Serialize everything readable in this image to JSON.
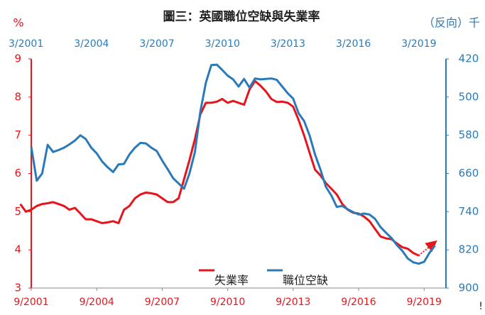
{
  "chart_data": {
    "type": "line",
    "title": "圖三：英國職位空缺與失業率",
    "y_label": "%",
    "y2_label": "（反向）千",
    "annotation": "!",
    "x": [
      "2001-03",
      "2001-06",
      "2001-09",
      "2001-12",
      "2002-03",
      "2002-06",
      "2002-09",
      "2002-12",
      "2003-03",
      "2003-06",
      "2003-09",
      "2003-12",
      "2004-03",
      "2004-06",
      "2004-09",
      "2004-12",
      "2005-03",
      "2005-06",
      "2005-09",
      "2005-12",
      "2006-03",
      "2006-06",
      "2006-09",
      "2006-12",
      "2007-03",
      "2007-06",
      "2007-09",
      "2007-12",
      "2008-03",
      "2008-06",
      "2008-09",
      "2008-12",
      "2009-03",
      "2009-06",
      "2009-09",
      "2009-12",
      "2010-03",
      "2010-06",
      "2010-09",
      "2010-12",
      "2011-03",
      "2011-06",
      "2011-09",
      "2011-12",
      "2012-03",
      "2012-06",
      "2012-09",
      "2012-12",
      "2013-03",
      "2013-06",
      "2013-09",
      "2013-12",
      "2014-03",
      "2014-06",
      "2014-09",
      "2014-12",
      "2015-03",
      "2015-06",
      "2015-09",
      "2015-12",
      "2016-03",
      "2016-06",
      "2016-09",
      "2016-12",
      "2017-03",
      "2017-06",
      "2017-09",
      "2017-12",
      "2018-03",
      "2018-06",
      "2018-09",
      "2018-12",
      "2019-03",
      "2019-06",
      "2019-09",
      "2019-12",
      "2020-03"
    ],
    "series": [
      {
        "name": "失業率",
        "color": "#e8141b",
        "values": [
          5.2,
          5.0,
          5.05,
          5.15,
          5.2,
          5.22,
          5.25,
          5.2,
          5.15,
          5.05,
          5.1,
          4.95,
          4.8,
          4.8,
          4.75,
          4.7,
          4.72,
          4.75,
          4.7,
          5.05,
          5.15,
          5.35,
          5.45,
          5.5,
          5.48,
          5.45,
          5.35,
          5.25,
          5.25,
          5.35,
          5.85,
          6.35,
          6.9,
          7.55,
          7.85,
          7.85,
          7.88,
          7.95,
          7.85,
          7.9,
          7.85,
          7.8,
          8.2,
          8.42,
          8.3,
          8.15,
          7.95,
          7.87,
          7.88,
          7.85,
          7.75,
          7.4,
          7.0,
          6.55,
          6.1,
          5.95,
          5.75,
          5.6,
          5.45,
          5.2,
          5.05,
          4.97,
          4.95,
          4.87,
          4.75,
          4.55,
          4.35,
          4.3,
          4.28,
          4.17,
          4.07,
          4.03,
          3.92,
          3.85,
          null,
          null,
          null
        ],
        "forecast": {
          "x": [
            "2019-06",
            "2020-03"
          ],
          "values": [
            3.85,
            4.2
          ]
        }
      },
      {
        "name": "職位空缺",
        "color": "#2a7ab9",
        "axis": "y2",
        "values": [
          null,
          null,
          604,
          675,
          660,
          600,
          615,
          611,
          606,
          599,
          591,
          580,
          588,
          606,
          618,
          635,
          647,
          657,
          641,
          640,
          620,
          606,
          596,
          597,
          606,
          613,
          633,
          651,
          670,
          681,
          692,
          660,
          615,
          530,
          470,
          433,
          432,
          443,
          455,
          463,
          478,
          462,
          480,
          461,
          463,
          462,
          461,
          464,
          478,
          492,
          503,
          534,
          550,
          580,
          620,
          652,
          688,
          706,
          730,
          728,
          735,
          741,
          746,
          744,
          746,
          755,
          772,
          784,
          795,
          810,
          822,
          838,
          846,
          849,
          845,
          826,
          811
        ]
      }
    ],
    "xlim": [
      "2001-09",
      "2020-09"
    ],
    "xticks": [
      {
        "value": "2001-09",
        "label": "9/2001"
      },
      {
        "value": "2004-09",
        "label": "9/2004"
      },
      {
        "value": "2007-09",
        "label": "9/2007"
      },
      {
        "value": "2010-09",
        "label": "9/2010"
      },
      {
        "value": "2013-09",
        "label": "9/2013"
      },
      {
        "value": "2016-09",
        "label": "9/2016"
      },
      {
        "value": "2019-09",
        "label": "9/2019"
      }
    ],
    "xticks_top": [
      {
        "value": "2001-03",
        "label": "3/2001"
      },
      {
        "value": "2004-03",
        "label": "3/2004"
      },
      {
        "value": "2007-03",
        "label": "3/2007"
      },
      {
        "value": "2010-03",
        "label": "3/2010"
      },
      {
        "value": "2013-03",
        "label": "3/2013"
      },
      {
        "value": "2016-03",
        "label": "3/2016"
      },
      {
        "value": "2019-03",
        "label": "3/2019"
      }
    ],
    "ylim": [
      3,
      9
    ],
    "yticks": [
      3,
      4,
      5,
      6,
      7,
      8,
      9
    ],
    "y2lim": [
      900,
      420
    ],
    "y2ticks": [
      420,
      500,
      580,
      660,
      740,
      820,
      900
    ],
    "grid": false
  }
}
